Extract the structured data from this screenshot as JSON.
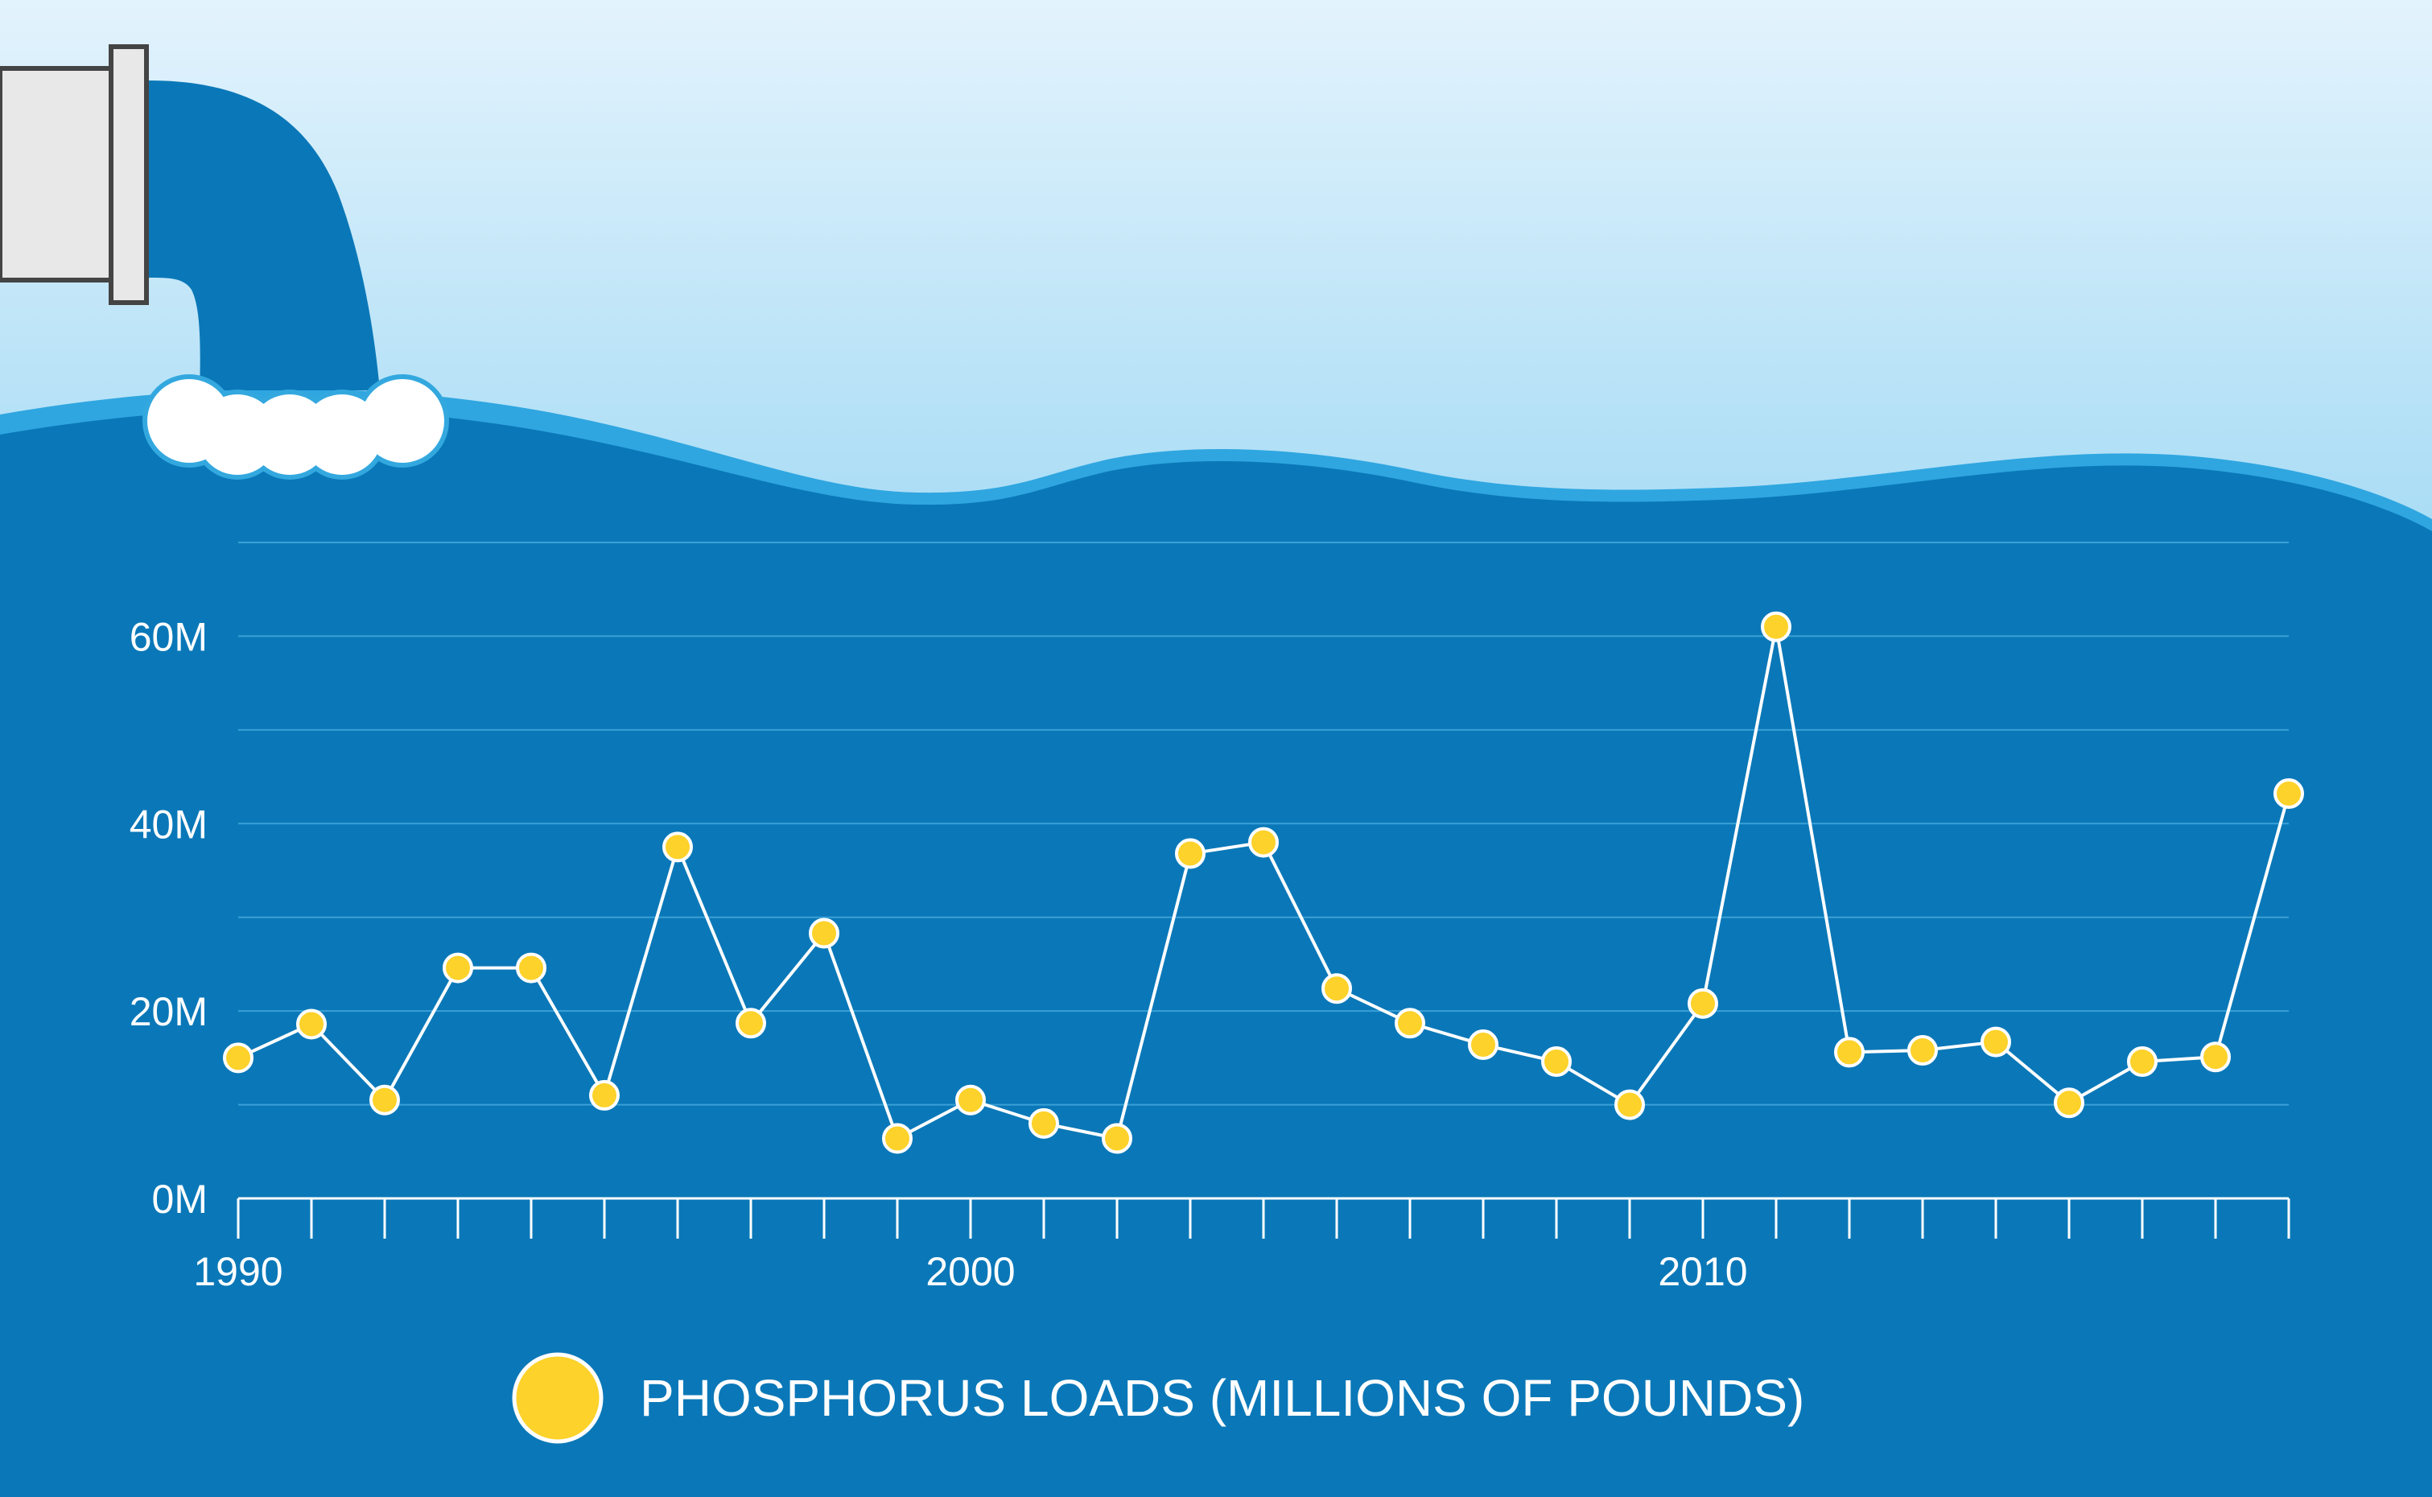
{
  "colors": {
    "sky_top": "#e3f3fd",
    "sky_bottom": "#3fb3e6",
    "water": "#0a78b8",
    "wave_edge": "#2fa6e0",
    "grid": "#3aa0d6",
    "line": "#ffffff",
    "marker": "#fcd22b",
    "pipe_water": "#0a78b8",
    "pipe": "#e8e8e8",
    "foam": "#ffffff"
  },
  "chart_data": {
    "type": "line",
    "x": [
      1990,
      1991,
      1992,
      1993,
      1994,
      1995,
      1996,
      1997,
      1998,
      1999,
      2000,
      2001,
      2002,
      2003,
      2004,
      2005,
      2006,
      2007,
      2008,
      2009,
      2010,
      2011,
      2012,
      2013,
      2014,
      2015,
      2016,
      2017,
      2018
    ],
    "series": [
      {
        "name": "PHOSPHORUS LOADS (MILLIONS OF POUNDS)",
        "values": [
          15,
          18.6,
          10.5,
          24.6,
          24.6,
          11,
          37.5,
          18.7,
          28.3,
          6.4,
          10.5,
          8,
          6.4,
          36.8,
          38,
          22.4,
          18.7,
          16.4,
          14.6,
          10,
          20.8,
          61,
          15.6,
          15.8,
          16.7,
          10.2,
          14.6,
          15.1,
          43.2
        ]
      }
    ],
    "y_ticks": [
      "0M",
      "20M",
      "40M",
      "60M"
    ],
    "y_tick_values": [
      0,
      20,
      40,
      60
    ],
    "x_tick_labels": [
      "1990",
      "2000",
      "2010"
    ],
    "x_tick_label_values": [
      1990,
      2000,
      2010
    ],
    "ylim": [
      0,
      70
    ],
    "xlim": [
      1990,
      2018
    ],
    "grid": true,
    "grid_step": 10,
    "legend": {
      "label": "PHOSPHORUS LOADS (MILLIONS OF POUNDS)",
      "position": "bottom-center"
    }
  }
}
